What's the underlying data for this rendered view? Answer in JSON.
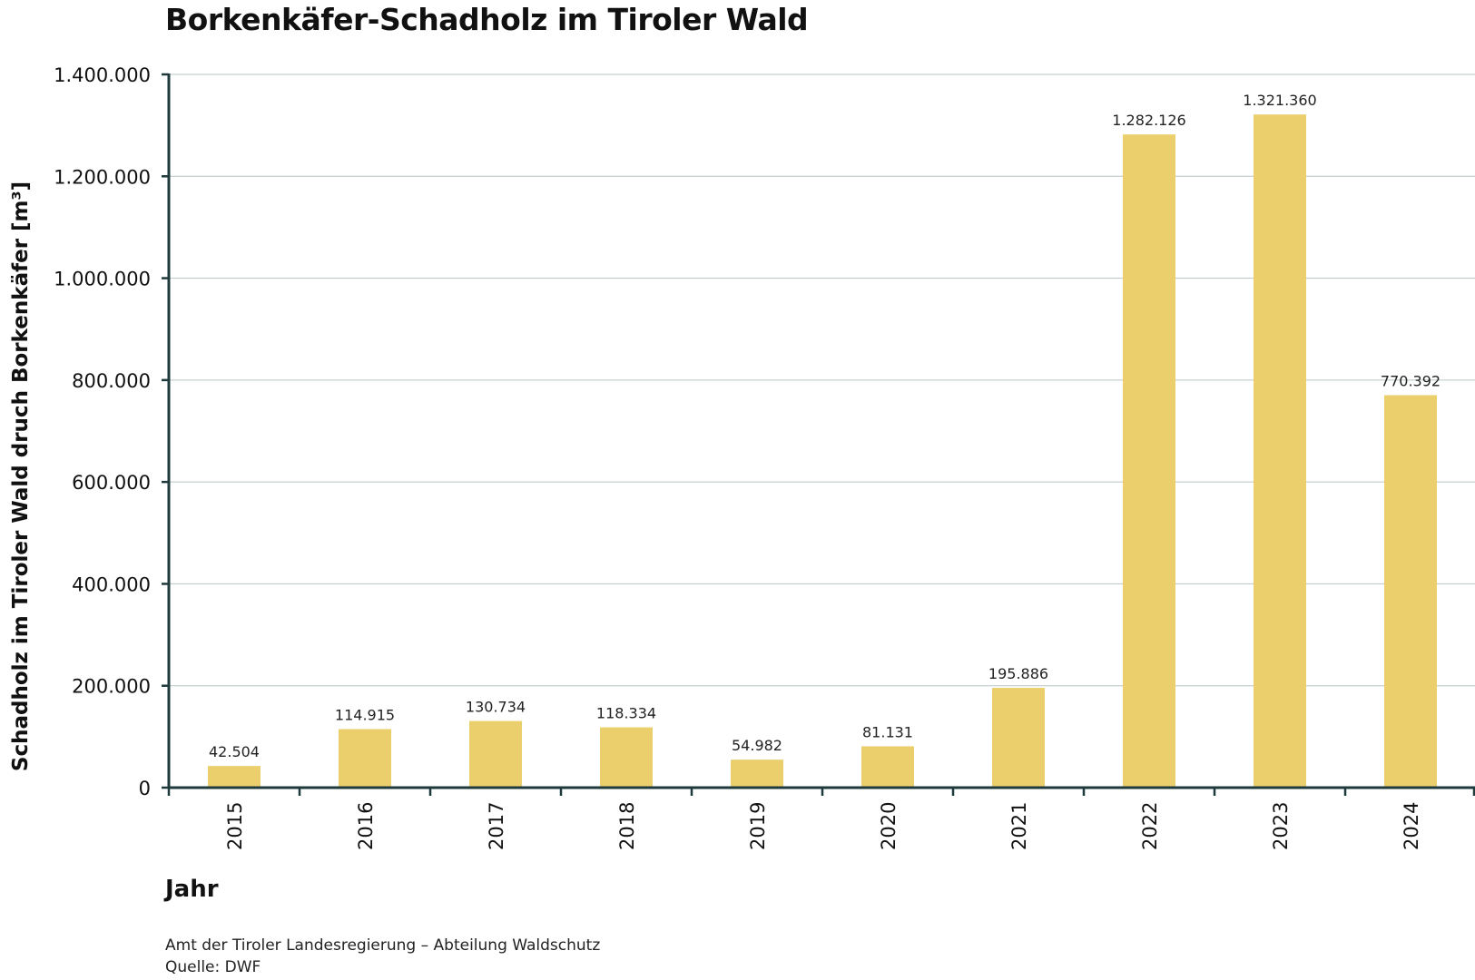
{
  "chart_data": {
    "type": "bar",
    "title": "Borkenkäfer-Schadholz im Tiroler Wald",
    "xlabel": "Jahr",
    "ylabel": "Schadholz im Tiroler Wald druch Borkenkäfer [m³]",
    "categories": [
      "2015",
      "2016",
      "2017",
      "2018",
      "2019",
      "2020",
      "2021",
      "2022",
      "2023",
      "2024"
    ],
    "values": [
      42504,
      114915,
      130734,
      118334,
      54982,
      81131,
      195886,
      1282126,
      1321360,
      770392
    ],
    "data_labels": [
      "42.504",
      "114.915",
      "130.734",
      "118.334",
      "54.982",
      "81.131",
      "195.886",
      "1.282.126",
      "1.321.360",
      "770.392"
    ],
    "ylim": [
      0,
      1400000
    ],
    "yticks": [
      0,
      200000,
      400000,
      600000,
      800000,
      1000000,
      1200000,
      1400000
    ],
    "ytick_labels": [
      "0",
      "200.000",
      "400.000",
      "600.000",
      "800.000",
      "1.000.000",
      "1.200.000",
      "1.400.000"
    ],
    "grid": true,
    "legend": "none"
  },
  "colors": {
    "bar": "#EBCF6D",
    "axis": "#1F3A3C",
    "grid": "#B8C4C4"
  },
  "source": {
    "line1": "Amt der Tiroler Landesregierung – Abteilung Waldschutz",
    "line2": "Quelle: DWF"
  }
}
